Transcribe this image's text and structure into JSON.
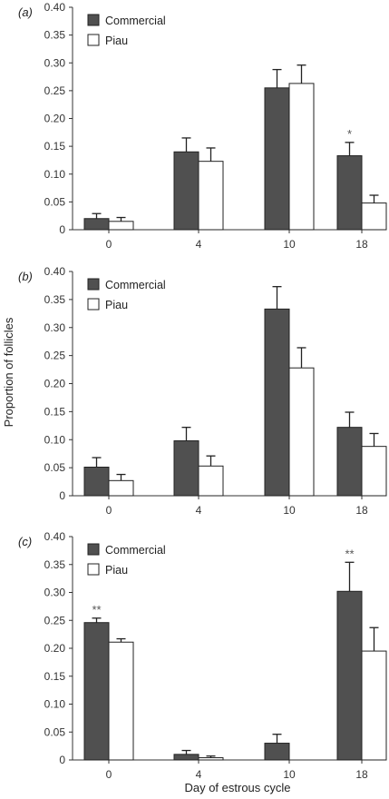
{
  "colors": {
    "commercial": "#505050",
    "piau": "#ffffff",
    "axis": "#333333",
    "star": "#666666"
  },
  "ylabel": "Proportion of follicles",
  "xlabel": "Day of estrous cycle",
  "chart_data": [
    {
      "type": "bar",
      "panel": "(a)",
      "categories": [
        "0",
        "4",
        "10",
        "18"
      ],
      "ylim": [
        0,
        0.4
      ],
      "yticks": [
        "0",
        "0.05",
        "0.10",
        "0.15",
        "0.20",
        "0.25",
        "0.30",
        "0.35",
        "0.40"
      ],
      "legend": "top-left",
      "series": [
        {
          "name": "Commercial",
          "values": [
            0.02,
            0.14,
            0.255,
            0.133
          ],
          "errors": [
            0.009,
            0.025,
            0.033,
            0.024
          ]
        },
        {
          "name": "Piau",
          "values": [
            0.015,
            0.123,
            0.263,
            0.048
          ],
          "errors": [
            0.007,
            0.024,
            0.033,
            0.014
          ]
        }
      ],
      "annotations": [
        {
          "text": "*",
          "category": "18",
          "series": 0
        }
      ]
    },
    {
      "type": "bar",
      "panel": "(b)",
      "categories": [
        "0",
        "4",
        "10",
        "18"
      ],
      "ylim": [
        0,
        0.4
      ],
      "yticks": [
        "0",
        "0.05",
        "0.10",
        "0.15",
        "0.20",
        "0.25",
        "0.30",
        "0.35",
        "0.40"
      ],
      "legend": "top-left",
      "series": [
        {
          "name": "Commercial",
          "values": [
            0.051,
            0.098,
            0.333,
            0.122
          ],
          "errors": [
            0.017,
            0.024,
            0.04,
            0.027
          ]
        },
        {
          "name": "Piau",
          "values": [
            0.027,
            0.053,
            0.228,
            0.088
          ],
          "errors": [
            0.011,
            0.018,
            0.036,
            0.023
          ]
        }
      ],
      "annotations": []
    },
    {
      "type": "bar",
      "panel": "(c)",
      "categories": [
        "0",
        "4",
        "10",
        "18"
      ],
      "ylim": [
        0,
        0.4
      ],
      "yticks": [
        "0",
        "0.05",
        "0.10",
        "0.15",
        "0.20",
        "0.25",
        "0.30",
        "0.35",
        "0.40"
      ],
      "legend": "top-left",
      "series": [
        {
          "name": "Commercial",
          "values": [
            0.246,
            0.01,
            0.03,
            0.302
          ],
          "errors": [
            0.008,
            0.007,
            0.016,
            0.052
          ]
        },
        {
          "name": "Piau",
          "values": [
            0.211,
            0.004,
            0.0,
            0.195
          ],
          "errors": [
            0.006,
            0.003,
            0.0,
            0.042
          ]
        }
      ],
      "annotations": [
        {
          "text": "**",
          "category": "0",
          "series": 0
        },
        {
          "text": "**",
          "category": "18",
          "series": 0
        }
      ]
    }
  ]
}
